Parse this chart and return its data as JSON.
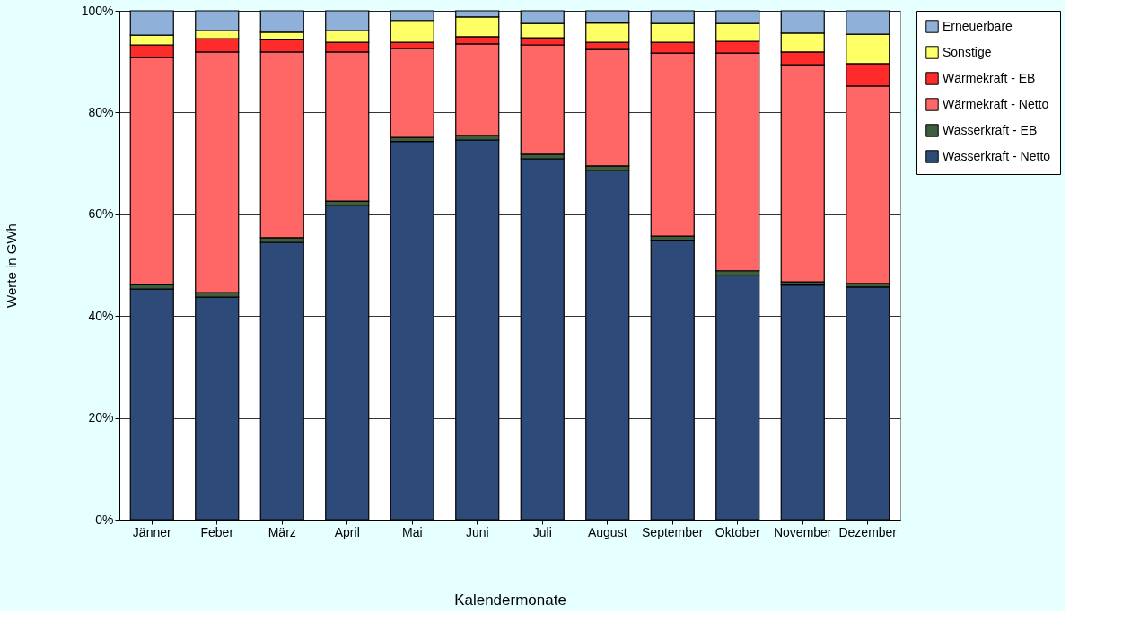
{
  "chart_data": {
    "type": "bar",
    "stacked": true,
    "xlabel": "Kalendermonate",
    "ylabel": "Werte in GWh",
    "categories": [
      "Jänner",
      "Feber",
      "März",
      "April",
      "Mai",
      "Juni",
      "Juli",
      "August",
      "September",
      "Oktober",
      "November",
      "Dezember"
    ],
    "series": [
      {
        "name": "Wasserkraft - Netto",
        "color": "#2e4a78",
        "values": [
          45.3,
          43.7,
          54.5,
          61.7,
          74.3,
          74.6,
          70.9,
          68.6,
          54.9,
          47.9,
          46.1,
          45.7
        ]
      },
      {
        "name": "Wasserkraft - EB",
        "color": "#3d5e3d",
        "values": [
          0.9,
          0.9,
          0.9,
          0.9,
          0.8,
          0.9,
          0.9,
          0.9,
          0.8,
          1.0,
          0.6,
          0.7
        ]
      },
      {
        "name": "Wärmekraft - Netto",
        "color": "#ff6666",
        "values": [
          44.6,
          47.3,
          36.5,
          29.3,
          17.5,
          18.0,
          21.5,
          22.9,
          36.0,
          42.8,
          42.7,
          38.8
        ]
      },
      {
        "name": "Wärmekraft - EB",
        "color": "#ff2a2a",
        "values": [
          2.5,
          2.6,
          2.4,
          1.9,
          1.2,
          1.4,
          1.4,
          1.4,
          2.1,
          2.3,
          2.5,
          4.4
        ]
      },
      {
        "name": "Sonstige",
        "color": "#ffff66",
        "values": [
          1.9,
          1.6,
          1.5,
          2.3,
          4.3,
          3.9,
          2.8,
          3.8,
          3.7,
          3.5,
          3.7,
          5.8
        ]
      },
      {
        "name": "Erneuerbare",
        "color": "#8fb0d8",
        "values": [
          4.8,
          3.9,
          4.2,
          3.9,
          1.9,
          1.2,
          2.5,
          2.4,
          2.5,
          2.5,
          4.4,
          4.6
        ]
      }
    ],
    "ylim": [
      0,
      100
    ],
    "yticks": [
      {
        "value": 0,
        "label": "0%"
      },
      {
        "value": 20,
        "label": "20%"
      },
      {
        "value": 40,
        "label": "40%"
      },
      {
        "value": 60,
        "label": "60%"
      },
      {
        "value": 80,
        "label": "80%"
      },
      {
        "value": 100,
        "label": "100%"
      }
    ],
    "grid": "y",
    "legend": "right"
  }
}
